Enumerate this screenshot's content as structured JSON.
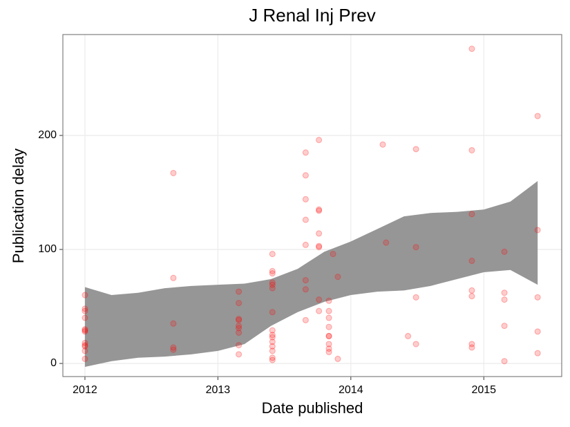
{
  "chart_data": {
    "type": "scatter",
    "title": "J Renal Inj Prev",
    "x_label": "Date published",
    "y_label": "Publication delay",
    "x": [
      2012,
      2012,
      2012,
      2012,
      2012,
      2012,
      2012,
      2012,
      2012,
      2012,
      2012,
      2012,
      2012.665,
      2012.665,
      2012.665,
      2012.665,
      2012.665,
      2013.157,
      2013.157,
      2013.157,
      2013.157,
      2013.157,
      2013.157,
      2013.157,
      2013.157,
      2013.157,
      2013.41,
      2013.41,
      2013.41,
      2013.41,
      2013.41,
      2013.41,
      2013.41,
      2013.41,
      2013.41,
      2013.41,
      2013.41,
      2013.41,
      2013.41,
      2013.41,
      2013.41,
      2013.66,
      2013.66,
      2013.66,
      2013.66,
      2013.66,
      2013.66,
      2013.66,
      2013.66,
      2013.76,
      2013.76,
      2013.76,
      2013.76,
      2013.76,
      2013.76,
      2013.76,
      2013.76,
      2013.835,
      2013.835,
      2013.835,
      2013.835,
      2013.835,
      2013.835,
      2013.835,
      2013.835,
      2013.835,
      2013.866,
      2013.902,
      2013.902,
      2014.24,
      2014.265,
      2014.43,
      2014.49,
      2014.49,
      2014.49,
      2014.49,
      2014.91,
      2014.91,
      2014.91,
      2014.91,
      2014.91,
      2014.91,
      2014.91,
      2014.91,
      2015.155,
      2015.155,
      2015.155,
      2015.155,
      2015.155,
      2015.405,
      2015.405,
      2015.405,
      2015.405,
      2015.405
    ],
    "values": [
      60,
      48,
      46,
      40,
      30,
      29,
      28,
      18,
      16,
      15,
      11,
      4,
      167,
      75,
      35,
      14,
      12,
      63,
      53,
      39,
      38,
      33,
      31,
      27,
      16,
      8,
      96,
      81,
      79,
      71,
      69,
      66,
      45,
      29,
      25,
      23,
      19,
      15,
      11,
      5,
      3,
      185,
      165,
      144,
      126,
      104,
      73,
      65,
      38,
      196,
      135,
      134,
      114,
      103,
      102,
      56,
      46,
      55,
      46,
      40,
      32,
      24,
      24,
      17,
      13,
      10,
      96,
      76,
      4,
      192,
      106,
      24,
      188,
      102,
      58,
      17,
      276,
      187,
      131,
      90,
      64,
      59,
      17,
      14,
      98,
      62,
      56,
      33,
      2,
      217,
      117,
      58,
      28,
      9
    ],
    "point_color": "#ff0000",
    "point_alpha": 0.2,
    "band": {
      "color": "#969696",
      "x": [
        2012,
        2012.2,
        2012.4,
        2012.6,
        2012.8,
        2013,
        2013.2,
        2013.4,
        2013.6,
        2013.8,
        2014,
        2014.2,
        2014.4,
        2014.6,
        2014.8,
        2015,
        2015.2,
        2015.405
      ],
      "lower": [
        -3,
        2,
        5,
        6,
        8,
        11,
        17,
        33,
        45,
        54,
        60,
        63,
        64,
        68,
        74,
        80,
        82,
        69
      ],
      "upper": [
        67,
        60,
        62,
        66,
        68,
        69,
        70,
        74,
        83,
        98,
        107,
        118,
        129,
        132,
        133,
        135,
        142,
        160
      ]
    },
    "xlim": [
      2011.834,
      2015.586
    ],
    "ylim": [
      -11.5,
      288.5
    ],
    "xticks": [
      2012,
      2013,
      2014,
      2015
    ],
    "yticks": [
      0,
      100,
      200
    ],
    "grid": true
  }
}
